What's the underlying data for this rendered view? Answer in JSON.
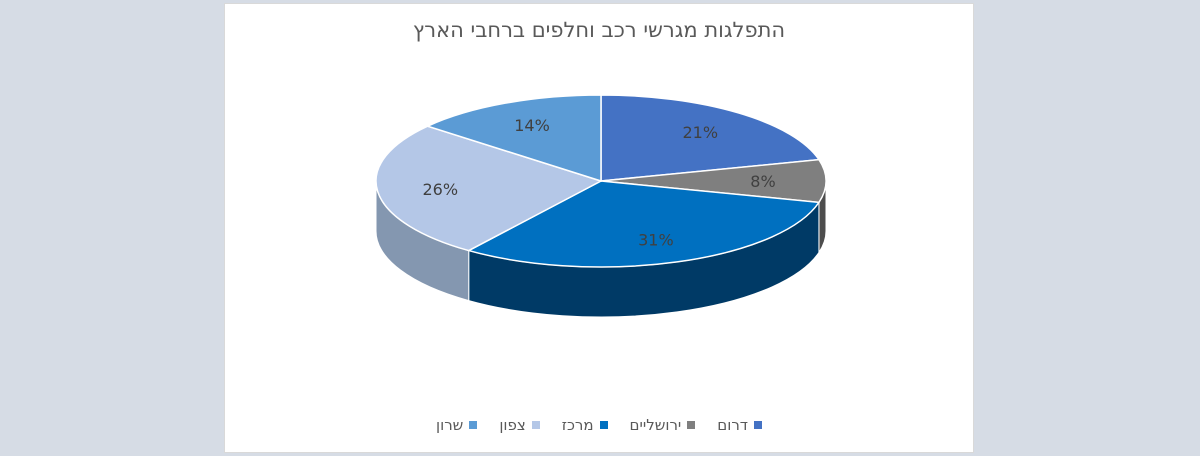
{
  "chart_data": {
    "type": "pie",
    "variant": "3d",
    "title": "התפלגות מגרשי רכב וחלפים ברחבי הארץ",
    "legend_position": "bottom",
    "slices": [
      {
        "name": "דרום",
        "value": 21,
        "label": "21%",
        "color": "#4472c4",
        "side_color": "#2f5597"
      },
      {
        "name": "ירושליים",
        "value": 8,
        "label": "8%",
        "color": "#7f7f7f",
        "side_color": "#4d4d4d"
      },
      {
        "name": "מרכז",
        "value": 31,
        "label": "31%",
        "color": "#0070c0",
        "side_color": "#003a66"
      },
      {
        "name": "צפון",
        "value": 26,
        "label": "26%",
        "color": "#b4c7e7",
        "side_color": "#8497b0"
      },
      {
        "name": "שרון",
        "value": 14,
        "label": "14%",
        "color": "#5b9bd5",
        "side_color": "#3a6e9e"
      }
    ]
  }
}
